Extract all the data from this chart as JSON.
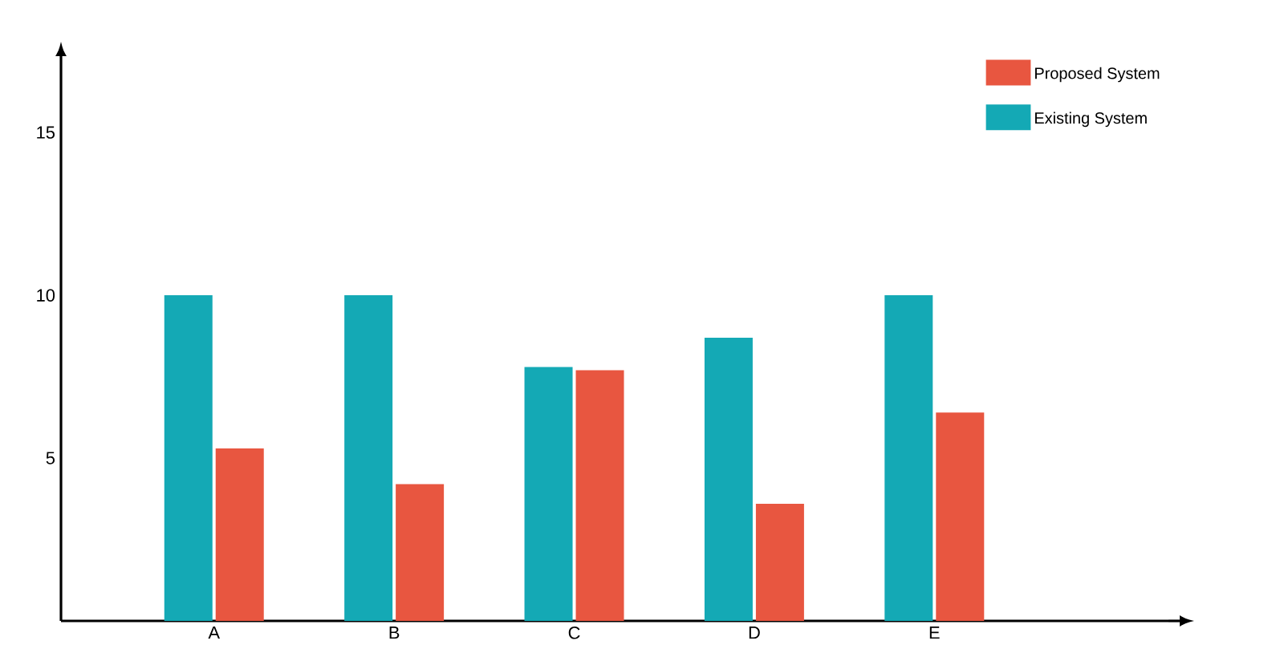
{
  "chart_data": {
    "type": "bar",
    "categories": [
      "A",
      "B",
      "C",
      "D",
      "E"
    ],
    "series": [
      {
        "name": "Existing System",
        "color": "#14a9b5",
        "values": [
          10,
          10,
          7.8,
          8.7,
          10
        ]
      },
      {
        "name": "Proposed System",
        "color": "#e85640",
        "values": [
          5.3,
          4.2,
          7.7,
          3.6,
          6.4
        ]
      }
    ],
    "ylim": [
      0,
      17
    ],
    "yticks": [
      5,
      10,
      15
    ],
    "grid": false,
    "legend": "top right"
  }
}
